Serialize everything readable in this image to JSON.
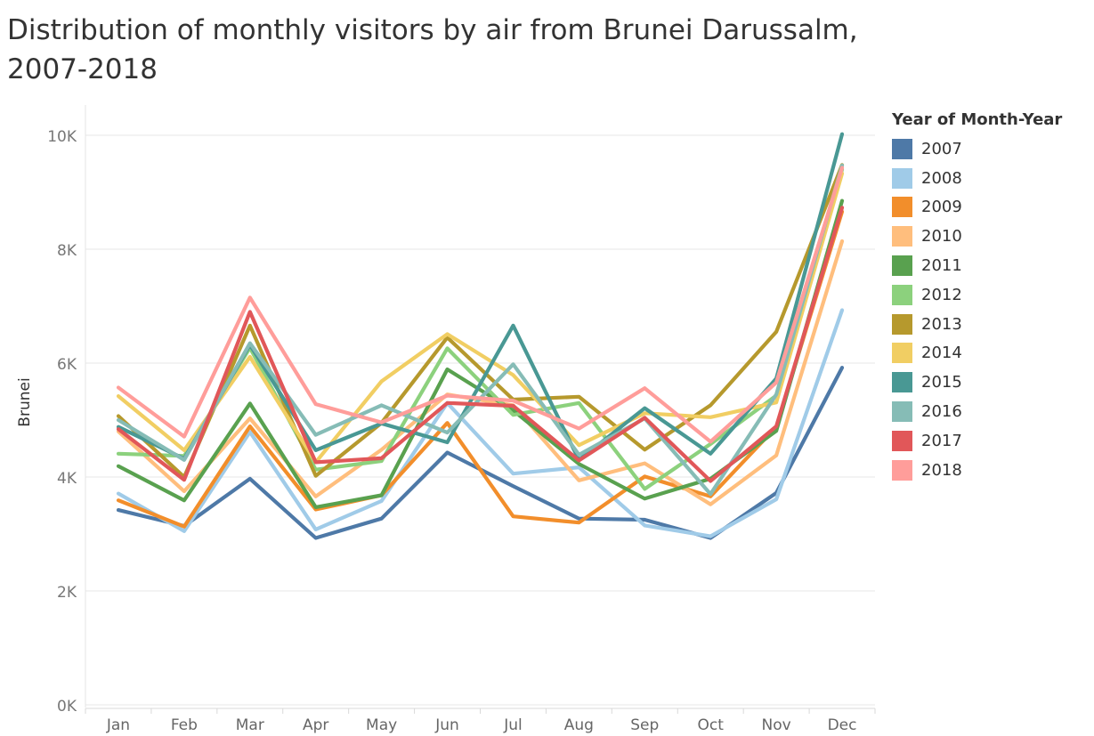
{
  "page": {
    "title_line1": "Distribution of monthly visitors by air from Brunei Darussalm,",
    "title_line2": "2007-2018"
  },
  "legend": {
    "title": "Year of Month-Year"
  },
  "chart_data": {
    "type": "line",
    "title": "Distribution of monthly visitors by air from Brunei Darussalm, 2007-2018",
    "xlabel": "",
    "ylabel": "Brunei",
    "ylim": [
      0,
      10000
    ],
    "y_ticks": [
      {
        "value": 0,
        "label": "0K"
      },
      {
        "value": 2000,
        "label": "2K"
      },
      {
        "value": 4000,
        "label": "4K"
      },
      {
        "value": 6000,
        "label": "6K"
      },
      {
        "value": 8000,
        "label": "8K"
      },
      {
        "value": 10000,
        "label": "10K"
      }
    ],
    "grid": "horizontal",
    "legend_position": "right",
    "categories": [
      "Jan",
      "Feb",
      "Mar",
      "Apr",
      "May",
      "Jun",
      "Jul",
      "Aug",
      "Sep",
      "Oct",
      "Nov",
      "Dec"
    ],
    "series": [
      {
        "name": "2007",
        "color": "#4e79a7",
        "values": [
          3420,
          3140,
          3970,
          2930,
          3270,
          4430,
          3840,
          3270,
          3250,
          2930,
          3720,
          5920
        ]
      },
      {
        "name": "2008",
        "color": "#a0cbe8",
        "values": [
          3710,
          3050,
          4790,
          3080,
          3580,
          5300,
          4060,
          4170,
          3150,
          2960,
          3610,
          6930
        ]
      },
      {
        "name": "2009",
        "color": "#f28e2b",
        "values": [
          3590,
          3130,
          4890,
          3430,
          3680,
          4950,
          3310,
          3200,
          4010,
          3660,
          4880,
          8660
        ]
      },
      {
        "name": "2010",
        "color": "#ffbe7d",
        "values": [
          4800,
          3750,
          5030,
          3660,
          4480,
          5450,
          5260,
          3940,
          4240,
          3520,
          4380,
          8140
        ]
      },
      {
        "name": "2011",
        "color": "#59a14f",
        "values": [
          4190,
          3590,
          5290,
          3470,
          3680,
          5890,
          5170,
          4230,
          3620,
          3970,
          4810,
          8850
        ]
      },
      {
        "name": "2012",
        "color": "#8cd17d",
        "values": [
          4410,
          4370,
          6270,
          4130,
          4280,
          6260,
          5090,
          5300,
          3790,
          4580,
          5430,
          9400
        ]
      },
      {
        "name": "2013",
        "color": "#b6992d",
        "values": [
          5070,
          4000,
          6660,
          4020,
          4950,
          6450,
          5360,
          5410,
          4480,
          5260,
          6550,
          9480
        ]
      },
      {
        "name": "2014",
        "color": "#f1ce63",
        "values": [
          5420,
          4470,
          6110,
          4260,
          5680,
          6510,
          5790,
          4560,
          5120,
          5050,
          5310,
          9330
        ]
      },
      {
        "name": "2015",
        "color": "#499894",
        "values": [
          4880,
          4320,
          6320,
          4470,
          4940,
          4610,
          6660,
          4300,
          5210,
          4410,
          5730,
          10020
        ]
      },
      {
        "name": "2016",
        "color": "#86bcb6",
        "values": [
          5000,
          4300,
          6350,
          4740,
          5260,
          4780,
          5980,
          4390,
          5030,
          3700,
          5450,
          9470
        ]
      },
      {
        "name": "2017",
        "color": "#e15759",
        "values": [
          4840,
          3950,
          6900,
          4260,
          4330,
          5300,
          5250,
          4290,
          5040,
          3930,
          4890,
          8730
        ]
      },
      {
        "name": "2018",
        "color": "#ff9d9a",
        "values": [
          5570,
          4710,
          7150,
          5280,
          4960,
          5430,
          5340,
          4850,
          5560,
          4620,
          5660,
          9430
        ]
      }
    ]
  }
}
